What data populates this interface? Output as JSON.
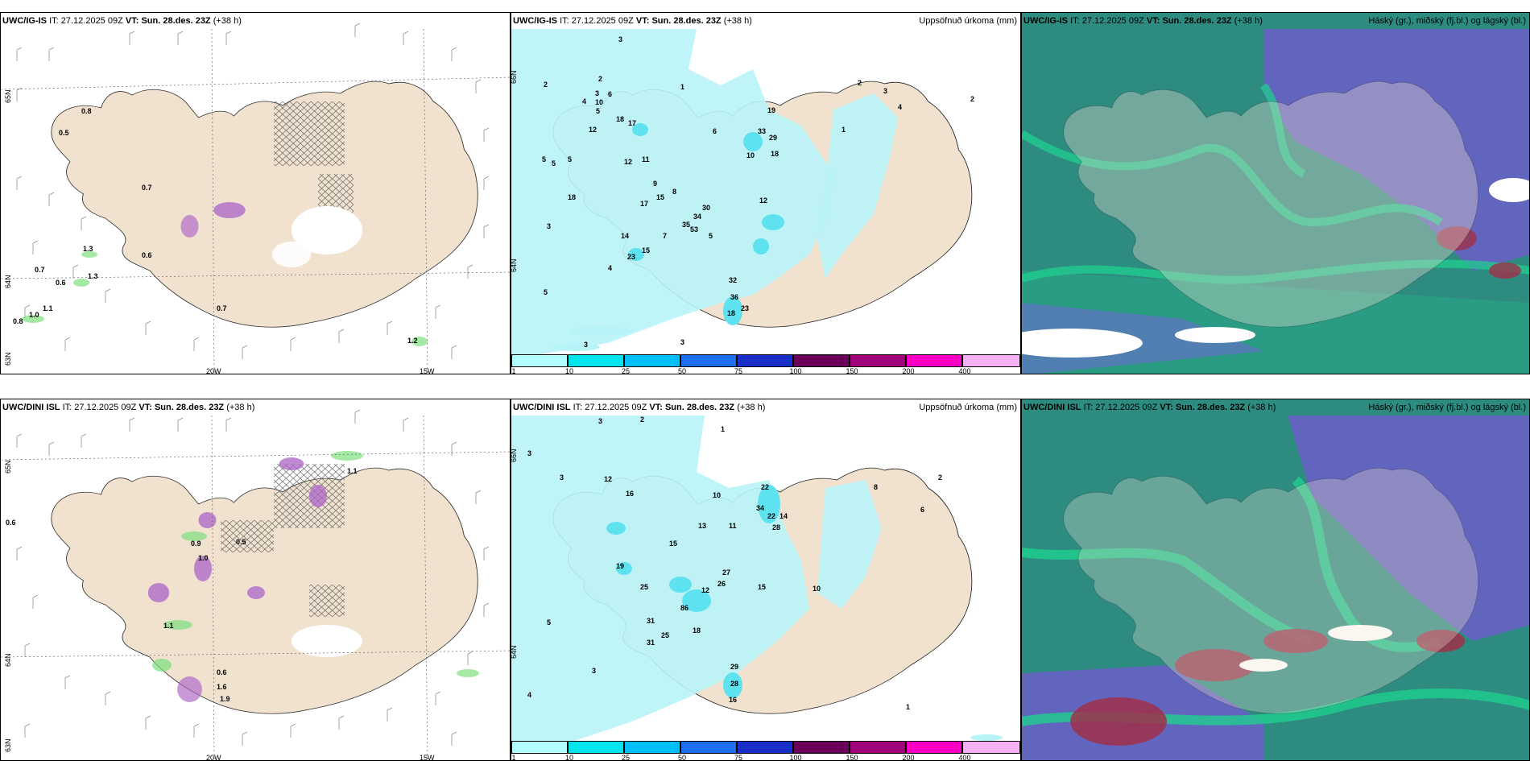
{
  "row1": {
    "panel1": {
      "model": "UWC/IG-IS",
      "it_label": "IT:",
      "it": "27.12.2025 09Z",
      "vt_label": "VT:",
      "vt": "Sun. 28.des. 23Z",
      "lead": "(+38 h)",
      "lat_labels": [
        "65N",
        "64N",
        "63N"
      ],
      "lon_labels": [
        "20W",
        "15W"
      ],
      "values": [
        "0.8",
        "0.5",
        "0.7",
        "1.3",
        "0.6",
        "0.7",
        "1.3",
        "0.6",
        "1.1",
        "0.8",
        "1.0",
        "0.7",
        "1.2"
      ]
    },
    "panel2": {
      "model": "UWC/IG-IS",
      "it_label": "IT:",
      "it": "27.12.2025 09Z",
      "vt_label": "VT:",
      "vt": "Sun. 28.des. 23Z",
      "lead": "(+38 h)",
      "title_right": "Uppsöfnuð úrkoma (mm)",
      "lat_labels": [
        "66N",
        "64N"
      ],
      "values": [
        "2",
        "2",
        "2",
        "3",
        "4",
        "10",
        "6",
        "5",
        "12",
        "18",
        "17",
        "5",
        "5",
        "5",
        "12",
        "11",
        "9",
        "18",
        "17",
        "15",
        "30",
        "34",
        "35",
        "53",
        "12",
        "33",
        "29",
        "19",
        "18",
        "10",
        "8",
        "7",
        "6",
        "5",
        "4",
        "3",
        "23",
        "15",
        "14",
        "32",
        "36",
        "18",
        "23",
        "1",
        "2",
        "3",
        "4",
        "5",
        "3",
        "2",
        "1",
        "3"
      ]
    },
    "panel3": {
      "model": "UWC/IG-IS",
      "it_label": "IT:",
      "it": "27.12.2025 09Z",
      "vt_label": "VT:",
      "vt": "Sun. 28.des. 23Z",
      "lead": "(+38 h)",
      "title_right": "Háský (gr.), miðský (fj.bl.) og lágský (bl.)"
    }
  },
  "row2": {
    "panel1": {
      "model": "UWC/DINI ISL",
      "it_label": "IT:",
      "it": "27.12.2025 09Z",
      "vt_label": "VT:",
      "vt": "Sun. 28.des. 23Z",
      "lead": "(+38 h)",
      "lat_labels": [
        "65N",
        "64N",
        "63N"
      ],
      "lon_labels": [
        "20W",
        "15W"
      ],
      "values": [
        "0.6",
        "1.1",
        "0.9",
        "1.0",
        "0.5",
        "1.1",
        "0.6",
        "1.6",
        "1.9"
      ]
    },
    "panel2": {
      "model": "UWC/DINI ISL",
      "it_label": "IT:",
      "it": "27.12.2025 09Z",
      "vt_label": "VT:",
      "vt": "Sun. 28.des. 23Z",
      "lead": "(+38 h)",
      "title_right": "Uppsöfnuð úrkoma (mm)",
      "lat_labels": [
        "66N",
        "64N"
      ],
      "values": [
        "3",
        "3",
        "3",
        "2",
        "1",
        "12",
        "16",
        "10",
        "22",
        "34",
        "22",
        "14",
        "28",
        "13",
        "15",
        "11",
        "27",
        "26",
        "12",
        "86",
        "15",
        "19",
        "25",
        "31",
        "31",
        "25",
        "18",
        "29",
        "28",
        "16",
        "10",
        "8",
        "6",
        "5",
        "4",
        "3",
        "2",
        "1"
      ]
    },
    "panel3": {
      "model": "UWC/DINI ISL",
      "it_label": "IT:",
      "it": "27.12.2025 09Z",
      "vt_label": "VT:",
      "vt": "Sun. 28.des. 23Z",
      "lead": "(+38 h)",
      "title_right": "Háský (gr.), miðský (fj.bl.) og lágský (bl.)"
    }
  },
  "legend": {
    "ticks": [
      "1",
      "10",
      "25",
      "50",
      "75",
      "100",
      "150",
      "200",
      "400"
    ],
    "colors": [
      "#b3ffff",
      "#00e5ee",
      "#00bfff",
      "#1e6ff0",
      "#1a2fc8",
      "#6b005a",
      "#a0007a",
      "#ff00c8",
      "#f6b2f6"
    ]
  },
  "colors": {
    "land": "#f1e2d0",
    "precip_light": "#b8f4f7",
    "precip_mid": "#5fe2f0",
    "cloud_high": "#2e8b80",
    "cloud_mid": "#6b5ec8",
    "cloud_low": "#1fcf8f"
  }
}
